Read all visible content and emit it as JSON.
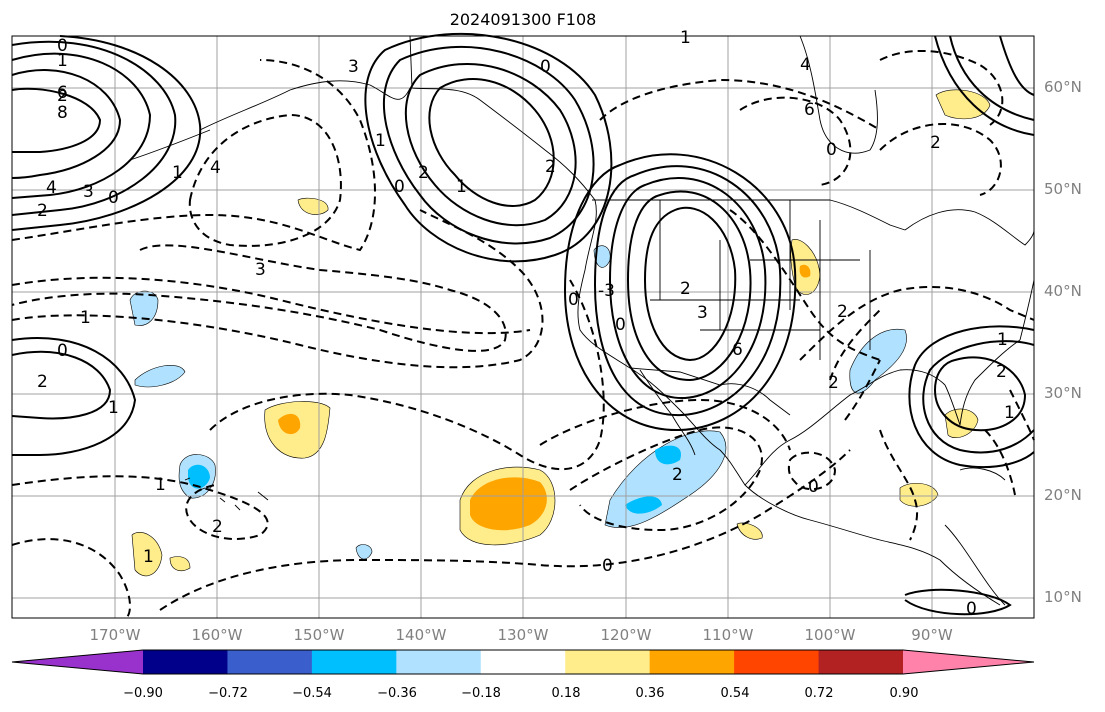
{
  "title": "2024091300 F108",
  "map": {
    "projection": "plate-carree",
    "lon_range": [
      -180,
      -80
    ],
    "lat_range": [
      8,
      65
    ],
    "coastline_color": "#000000",
    "grid": true,
    "lat_labels": [
      "60°N",
      "50°N",
      "40°N",
      "30°N",
      "20°N",
      "10°N"
    ],
    "lon_labels": [
      "170°W",
      "160°W",
      "150°W",
      "140°W",
      "130°W",
      "120°W",
      "110°W",
      "100°W",
      "90°W"
    ],
    "contour_labels": [
      "0",
      "1",
      "2",
      "6",
      "8",
      "4",
      "3",
      "0",
      "1",
      "2",
      "4",
      "3",
      "1",
      "0",
      "1",
      "2",
      "3",
      "1",
      "0",
      "2",
      "1",
      "2",
      "0",
      "-3",
      "0",
      "2",
      "3",
      "6",
      "1",
      "4",
      "6",
      "0",
      "2",
      "2",
      "1",
      "2",
      "0",
      "1",
      "2",
      "1",
      "0",
      "2",
      "2",
      "1",
      "0",
      "0"
    ]
  },
  "colorbar": {
    "ticks": [
      "−0.90",
      "−0.72",
      "−0.54",
      "−0.36",
      "−0.18",
      "0.18",
      "0.36",
      "0.54",
      "0.72",
      "0.90"
    ],
    "colors": [
      "#9932cc",
      "#00008b",
      "#3a5fcd",
      "#00bfff",
      "#b0e2ff",
      "#ffffff",
      "#ffec8b",
      "#ffa500",
      "#ff4500",
      "#b22222",
      "#ff82ab"
    ]
  }
}
